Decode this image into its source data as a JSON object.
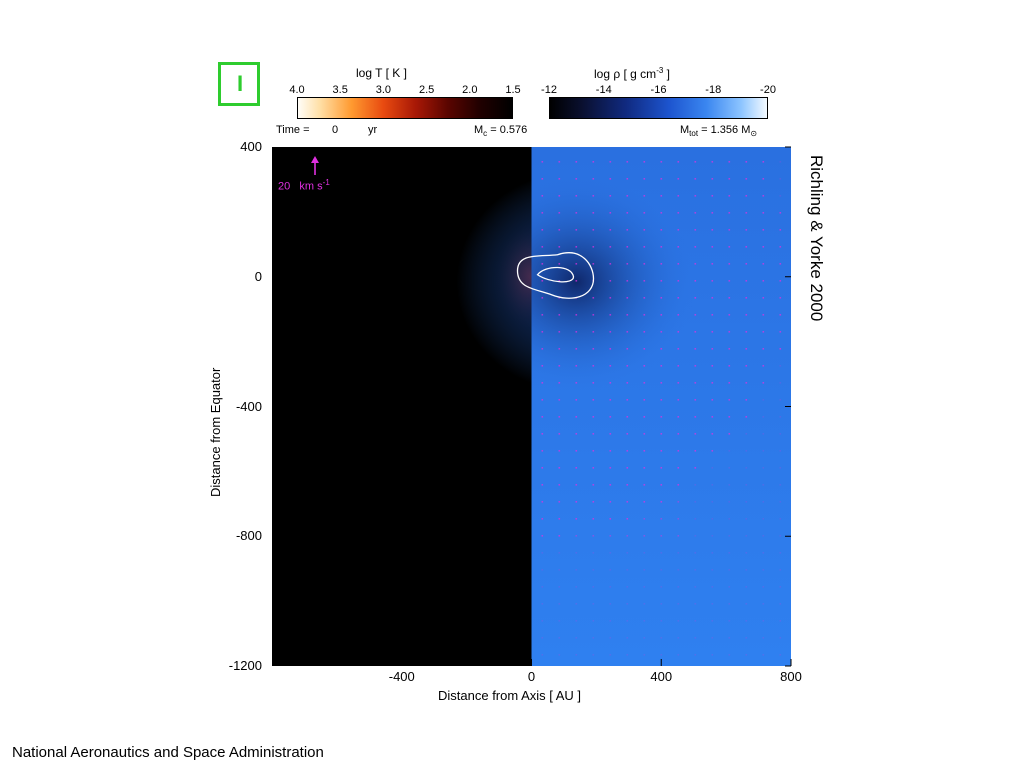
{
  "frame_marker": {
    "glyph": "I",
    "color": "#2ecc2e"
  },
  "colorbar_temperature": {
    "title": "log T  [ K ]",
    "ticks": [
      "4.0",
      "3.5",
      "3.0",
      "2.5",
      "2.0",
      "1.5"
    ]
  },
  "colorbar_density": {
    "title": "log ρ  [ g cm",
    "title_exp": "-3",
    "title_end": " ]",
    "ticks": [
      "-12",
      "-14",
      "-16",
      "-18",
      "-20"
    ]
  },
  "info": {
    "time_label": "Time =",
    "time_value": "0",
    "time_unit": "yr",
    "mc_label": "M",
    "mc_sub": "c",
    "mc_value": "= 0.576",
    "mtot_label": "M",
    "mtot_sub": "tot",
    "mtot_value": "= 1.356  M",
    "mtot_sub2": "⊙"
  },
  "velocity_key": {
    "value": "20",
    "unit": "km s",
    "unit_exp": "-1",
    "color": "#e030e0"
  },
  "side_credit": "Richling & Yorke 2000",
  "footer_credit": "National Aeronautics and Space Administration",
  "colors": {
    "temperature_panel": "#000000",
    "density_panel": "#2a74e6",
    "arrows": "#e030e0",
    "contour": "#ffffff"
  },
  "chart_data": {
    "type": "heatmap",
    "xlabel": "Distance from Axis  [ AU ]",
    "ylabel": "Distance from Equator",
    "xlim": [
      -800,
      800
    ],
    "ylim": [
      -1200,
      400
    ],
    "x_ticks": [
      -400,
      0,
      400,
      800
    ],
    "y_ticks": [
      400,
      0,
      -400,
      -800,
      -1200
    ],
    "x_tick_labels": [
      "-400",
      "0",
      "400",
      "800"
    ],
    "y_tick_labels": [
      "400",
      "0",
      "-400",
      "-800",
      "-1200"
    ],
    "left_half": "log T",
    "right_half": "log ρ"
  }
}
